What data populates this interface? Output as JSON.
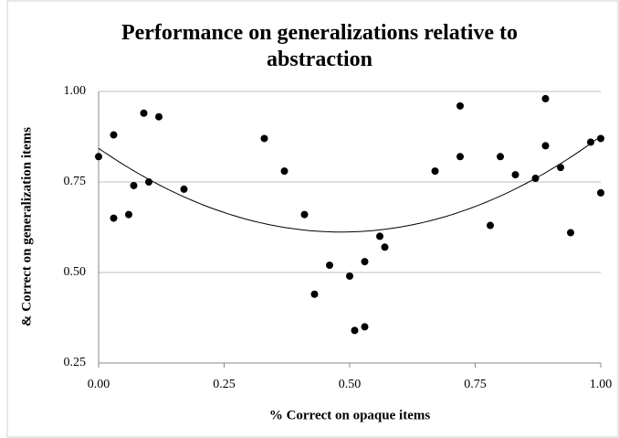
{
  "chart_data": {
    "type": "scatter",
    "title": "Performance on generalizations relative to abstraction",
    "x_label": "% Correct on opaque items",
    "y_label": "& Correct on generalization items",
    "x": [
      0.0,
      0.03,
      0.03,
      0.06,
      0.07,
      0.09,
      0.1,
      0.12,
      0.17,
      0.33,
      0.37,
      0.41,
      0.43,
      0.46,
      0.5,
      0.51,
      0.53,
      0.53,
      0.56,
      0.57,
      0.67,
      0.72,
      0.72,
      0.78,
      0.8,
      0.83,
      0.87,
      0.89,
      0.89,
      0.92,
      0.94,
      0.98,
      1.0,
      1.0
    ],
    "values": [
      0.82,
      0.88,
      0.65,
      0.66,
      0.74,
      0.94,
      0.75,
      0.93,
      0.73,
      0.87,
      0.78,
      0.66,
      0.44,
      0.52,
      0.49,
      0.34,
      0.53,
      0.35,
      0.6,
      0.57,
      0.78,
      0.96,
      0.82,
      0.63,
      0.82,
      0.77,
      0.76,
      0.98,
      0.85,
      0.79,
      0.61,
      0.86,
      0.87,
      0.72
    ],
    "color": "#000000",
    "trendline": "quadratic",
    "xlim": [
      0,
      1
    ],
    "ylim": [
      0.25,
      1
    ],
    "xticks": [
      {
        "value": 0,
        "label": "0.00"
      },
      {
        "value": 0.25,
        "label": "0.25"
      },
      {
        "value": 0.5,
        "label": "0.50"
      },
      {
        "value": 0.75,
        "label": "0.75"
      },
      {
        "value": 1,
        "label": "1.00"
      }
    ],
    "yticks": [
      {
        "value": 0.25,
        "label": "0.25"
      },
      {
        "value": 0.5,
        "label": "0.50"
      },
      {
        "value": 0.75,
        "label": "0.75"
      },
      {
        "value": 1,
        "label": "1.00"
      }
    ],
    "grid": true
  }
}
